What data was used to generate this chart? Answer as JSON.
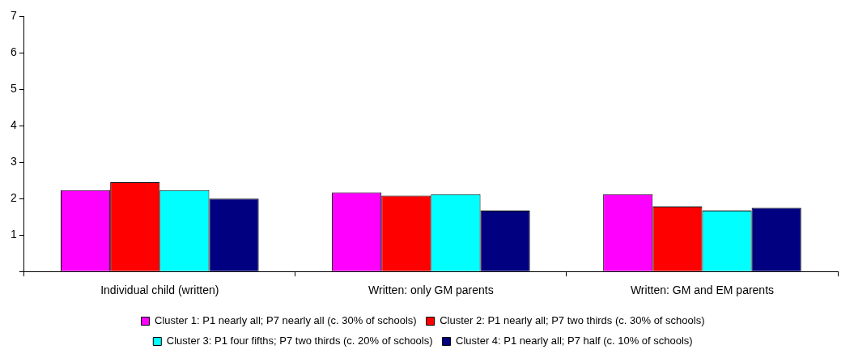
{
  "chart_data": {
    "type": "bar",
    "categories": [
      "Individual child (written)",
      "Written: only GM parents",
      "Written: GM and EM parents"
    ],
    "series": [
      {
        "name": "Cluster 1: P1 nearly all; P7 nearly all (c. 30% of schools)",
        "color": "#ff00ff",
        "values": [
          2.23,
          2.17,
          2.12
        ]
      },
      {
        "name": "Cluster 2: P1 nearly all; P7 two thirds (c. 30% of schools)",
        "color": "#ff0000",
        "values": [
          2.45,
          2.08,
          1.78
        ]
      },
      {
        "name": "Cluster 3: P1 four fifths; P7 two thirds (c. 20% of schools)",
        "color": "#00ffff",
        "values": [
          2.23,
          2.12,
          1.67
        ]
      },
      {
        "name": "Cluster 4: P1 nearly all; P7 half (c. 10% of schools)",
        "color": "#000080",
        "values": [
          2.0,
          1.67,
          1.75
        ]
      }
    ],
    "ylim": [
      0,
      7
    ],
    "yticks": [
      {
        "value": 0,
        "label": null
      },
      1,
      2,
      3,
      4,
      5,
      6,
      7
    ],
    "grid": false,
    "legend": "bottom"
  }
}
